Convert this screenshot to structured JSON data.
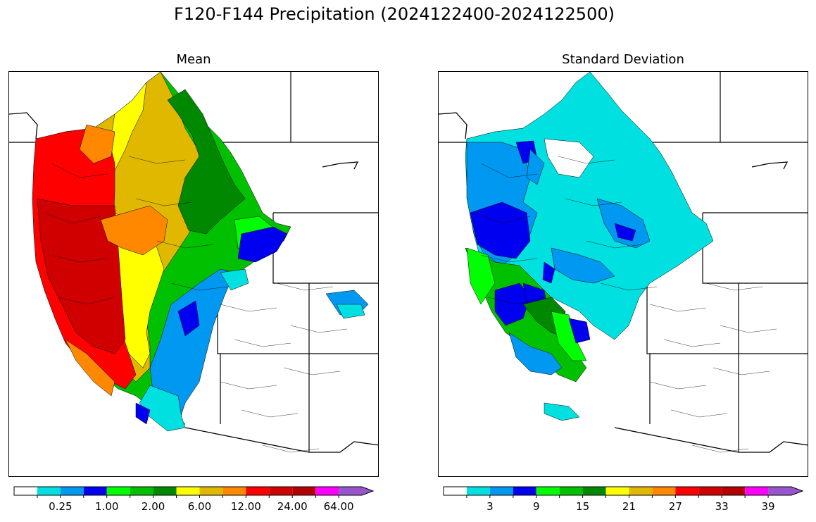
{
  "figure": {
    "title": "F120-F144 Precipitation (2024122400-2024122500)"
  },
  "panels": [
    {
      "title": "Mean",
      "colorbar": {
        "colors": [
          "#ffffff",
          "#00e0e0",
          "#0098f0",
          "#0000f0",
          "#00ff00",
          "#00c000",
          "#008800",
          "#ffff00",
          "#e0b800",
          "#ff8800",
          "#ff0000",
          "#d00000",
          "#b40000",
          "#ff00ff",
          "#9955cc"
        ],
        "tick_labels": [
          "0.25",
          "1.00",
          "2.00",
          "6.00",
          "12.00",
          "24.00",
          "64.00"
        ],
        "extend": "max"
      }
    },
    {
      "title": "Standard Deviation",
      "colorbar": {
        "colors": [
          "#ffffff",
          "#00e0e0",
          "#0098f0",
          "#0000f0",
          "#00ff00",
          "#00c000",
          "#008800",
          "#ffff00",
          "#e0b800",
          "#ff8800",
          "#ff0000",
          "#d00000",
          "#b40000",
          "#ff00ff",
          "#9955cc"
        ],
        "tick_labels": [
          "3",
          "9",
          "15",
          "21",
          "27",
          "33",
          "39"
        ],
        "extend": "max"
      }
    }
  ]
}
